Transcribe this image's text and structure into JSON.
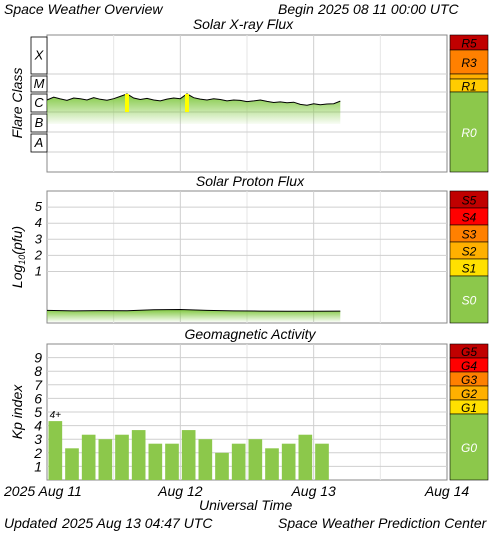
{
  "header": {
    "title": "Space Weather Overview",
    "begin_label": "Begin",
    "begin_value": "2025 08 11 00:00 UTC"
  },
  "footer": {
    "updated_label": "Updated",
    "updated_value": "2025 Aug 13 04:47 UTC",
    "center": "Space Weather Prediction Center",
    "x_axis_title": "Universal Time"
  },
  "x_ticks": [
    "2025 Aug 11",
    "Aug 12",
    "Aug 13",
    "Aug 14"
  ],
  "chart_data": [
    {
      "type": "area",
      "title": "Solar X-ray Flux",
      "ylabel": "Flare Class",
      "y_scale": "log",
      "y_range": [
        "1e-9",
        "1e-2"
      ],
      "y_tick_labels": [
        "A",
        "B",
        "C",
        "M",
        "X"
      ],
      "x_range_days": [
        0,
        3
      ],
      "x_units": "days since 2025 Aug 11 00:00 UTC",
      "series": [
        {
          "x": [
            0.0,
            0.05,
            0.1,
            0.15,
            0.2,
            0.25,
            0.3,
            0.35,
            0.4,
            0.45,
            0.5,
            0.55,
            0.6,
            0.65,
            0.7,
            0.75,
            0.8,
            0.85,
            0.9,
            0.95,
            1.0,
            1.05,
            1.1,
            1.15,
            1.2,
            1.25,
            1.3,
            1.35,
            1.4,
            1.45,
            1.5,
            1.55,
            1.6,
            1.65,
            1.7,
            1.75,
            1.8,
            1.85,
            1.9,
            1.95,
            2.0,
            2.05,
            2.1,
            2.15,
            2.2
          ],
          "values": [
            "4e-6",
            "5.5e-6",
            "4.5e-6",
            "3.8e-6",
            "5e-6",
            "4.6e-6",
            "4e-6",
            "5.2e-6",
            "4.3e-6",
            "3.9e-6",
            "4.6e-6",
            "6e-6",
            "8e-6",
            "5e-6",
            "4.2e-6",
            "4.8e-6",
            "4e-6",
            "3.6e-6",
            "4.4e-6",
            "5e-6",
            "4.6e-6",
            "8e-6",
            "5.2e-6",
            "4.4e-6",
            "4e-6",
            "4.6e-6",
            "4.2e-6",
            "3.6e-6",
            "4e-6",
            "3.8e-6",
            "3.3e-6",
            "3.6e-6",
            "4e-6",
            "3.4e-6",
            "3e-6",
            "3.2e-6",
            "2.9e-6",
            "3.1e-6",
            "2.4e-6",
            "2.2e-6",
            "2.6e-6",
            "2.3e-6",
            "2.5e-6",
            "2.6e-6",
            "3.5e-6"
          ]
        }
      ],
      "highlight_color": "#ffff00",
      "fill_color": "#80c840",
      "scale": [
        {
          "label": "R5",
          "color": "#c00000"
        },
        {
          "label": "R3",
          "color": "#ff8000"
        },
        {
          "label": "R1",
          "color": "#ffcc00"
        },
        {
          "label": "R0",
          "color": "#8cc84b"
        }
      ]
    },
    {
      "type": "area",
      "title": "Solar Proton Flux",
      "ylabel": "Log10(pfu)",
      "ylabel_main": "Log",
      "ylabel_sub": "10",
      "ylabel_tail": "(pfu)",
      "y_range": [
        -2.2,
        6
      ],
      "y_tick_labels": [
        "1",
        "2",
        "3",
        "4",
        "5"
      ],
      "x_range_days": [
        0,
        3
      ],
      "series": [
        {
          "x": [
            0.0,
            0.2,
            0.4,
            0.6,
            0.8,
            1.0,
            1.2,
            1.4,
            1.6,
            1.8,
            2.0,
            2.2
          ],
          "values": [
            -1.42,
            -1.45,
            -1.43,
            -1.44,
            -1.38,
            -1.36,
            -1.42,
            -1.45,
            -1.46,
            -1.47,
            -1.47,
            -1.46
          ]
        }
      ],
      "fill_color": "#80c840",
      "scale": [
        {
          "label": "S5",
          "color": "#c00000"
        },
        {
          "label": "S4",
          "color": "#ff0000"
        },
        {
          "label": "S3",
          "color": "#ff8000"
        },
        {
          "label": "S2",
          "color": "#ffb000"
        },
        {
          "label": "S1",
          "color": "#ffe000"
        },
        {
          "label": "S0",
          "color": "#8cc84b"
        }
      ]
    },
    {
      "type": "bar",
      "title": "Geomagnetic Activity",
      "ylabel": "Kp index",
      "y_range": [
        0,
        10
      ],
      "y_tick_labels": [
        "1",
        "2",
        "3",
        "4",
        "5",
        "6",
        "7",
        "8",
        "9"
      ],
      "bar_color": "#8cc84b",
      "x_range_days": [
        0,
        3
      ],
      "values": [
        4.33,
        2.33,
        3.33,
        3.0,
        3.33,
        3.67,
        2.67,
        2.67,
        3.67,
        3.0,
        2.0,
        2.67,
        3.0,
        2.33,
        2.67,
        3.33,
        2.67
      ],
      "annotation": "4+",
      "scale": [
        {
          "label": "G5",
          "color": "#c00000"
        },
        {
          "label": "G4",
          "color": "#ff0000"
        },
        {
          "label": "G3",
          "color": "#ff8000"
        },
        {
          "label": "G2",
          "color": "#ffb000"
        },
        {
          "label": "G1",
          "color": "#ffe000"
        },
        {
          "label": "G0",
          "color": "#8cc84b"
        }
      ]
    }
  ]
}
